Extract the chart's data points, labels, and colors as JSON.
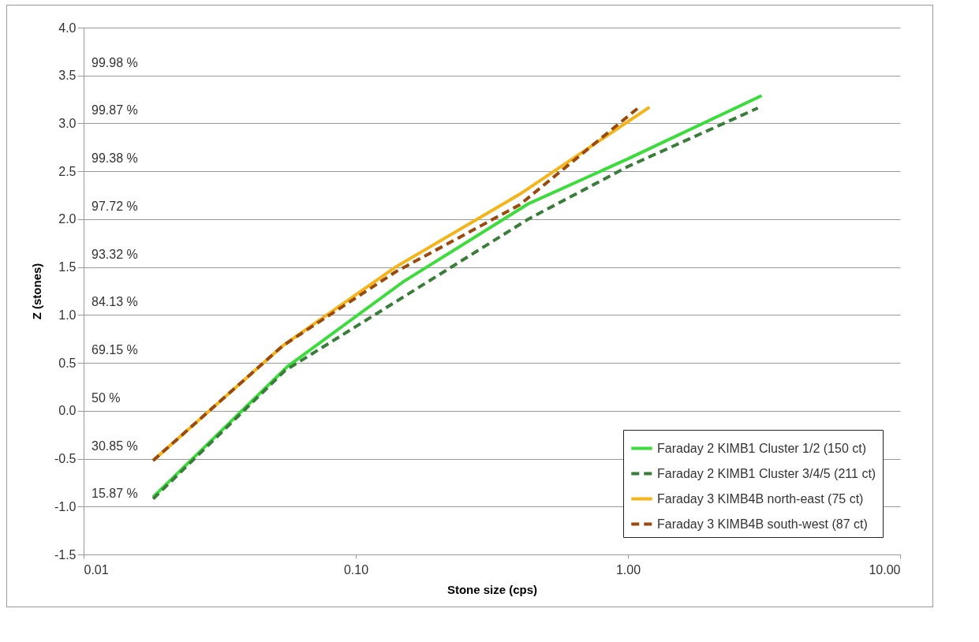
{
  "chart_data": {
    "type": "line",
    "xlabel": "Stone size (cps)",
    "ylabel": "Z (stones)",
    "log": "x",
    "grid": "y",
    "legend": "bottom right",
    "xlim": [
      0.01,
      10
    ],
    "ylim": [
      -1.5,
      4
    ],
    "xticks": [
      {
        "value": 0.01,
        "label": "0.01"
      },
      {
        "value": 0.1,
        "label": "0.10"
      },
      {
        "value": 1,
        "label": "1.00"
      },
      {
        "value": 10,
        "label": "10.00"
      }
    ],
    "yticks": [
      {
        "value": -1.5,
        "label": "-1.5"
      },
      {
        "value": -1,
        "label": "-1.0"
      },
      {
        "value": -0.5,
        "label": "-0.5"
      },
      {
        "value": 0,
        "label": "0.0"
      },
      {
        "value": 0.5,
        "label": "0.5"
      },
      {
        "value": 1,
        "label": "1.0"
      },
      {
        "value": 1.5,
        "label": "1.5"
      },
      {
        "value": 2,
        "label": "2.0"
      },
      {
        "value": 2.5,
        "label": "2.5"
      },
      {
        "value": 3,
        "label": "3.0"
      },
      {
        "value": 3.5,
        "label": "3.5"
      },
      {
        "value": 4,
        "label": "4.0"
      }
    ],
    "series": [
      {
        "name": "Faraday 2 KIMB1 Cluster 1/2 (150 ct)",
        "color": "#3ddc3d",
        "line_style": "solid",
        "x": [
          0.018,
          0.056,
          0.15,
          0.43,
          1.0,
          3.1
        ],
        "values": [
          -0.9,
          0.46,
          1.35,
          2.16,
          2.63,
          3.29
        ]
      },
      {
        "name": "Faraday 2 KIMB1 Cluster 3/4/5 (211 ct)",
        "color": "#3a7d3a",
        "line_style": "dashed",
        "x": [
          0.018,
          0.055,
          0.15,
          0.43,
          1.0,
          3.0
        ],
        "values": [
          -0.92,
          0.42,
          1.19,
          2.0,
          2.55,
          3.16
        ]
      },
      {
        "name": "Faraday 3 KIMB4B north-east (75 ct)",
        "color": "#f4b41a",
        "line_style": "solid",
        "x": [
          0.018,
          0.054,
          0.14,
          0.4,
          1.2
        ],
        "values": [
          -0.52,
          0.68,
          1.5,
          2.26,
          3.17
        ]
      },
      {
        "name": "Faraday 3 KIMB4B south-west (87 ct)",
        "color": "#9c4a0c",
        "line_style": "dashed",
        "x": [
          0.018,
          0.054,
          0.14,
          0.4,
          1.1
        ],
        "values": [
          -0.52,
          0.68,
          1.45,
          2.15,
          3.17
        ]
      }
    ],
    "annotations": [
      "99.98 %",
      "99.87 %",
      "99.38 %",
      "97.72 %",
      "93.32 %",
      "84.13 %",
      "69.15 %",
      "50 %",
      "30.85 %",
      "15.87 %"
    ]
  }
}
